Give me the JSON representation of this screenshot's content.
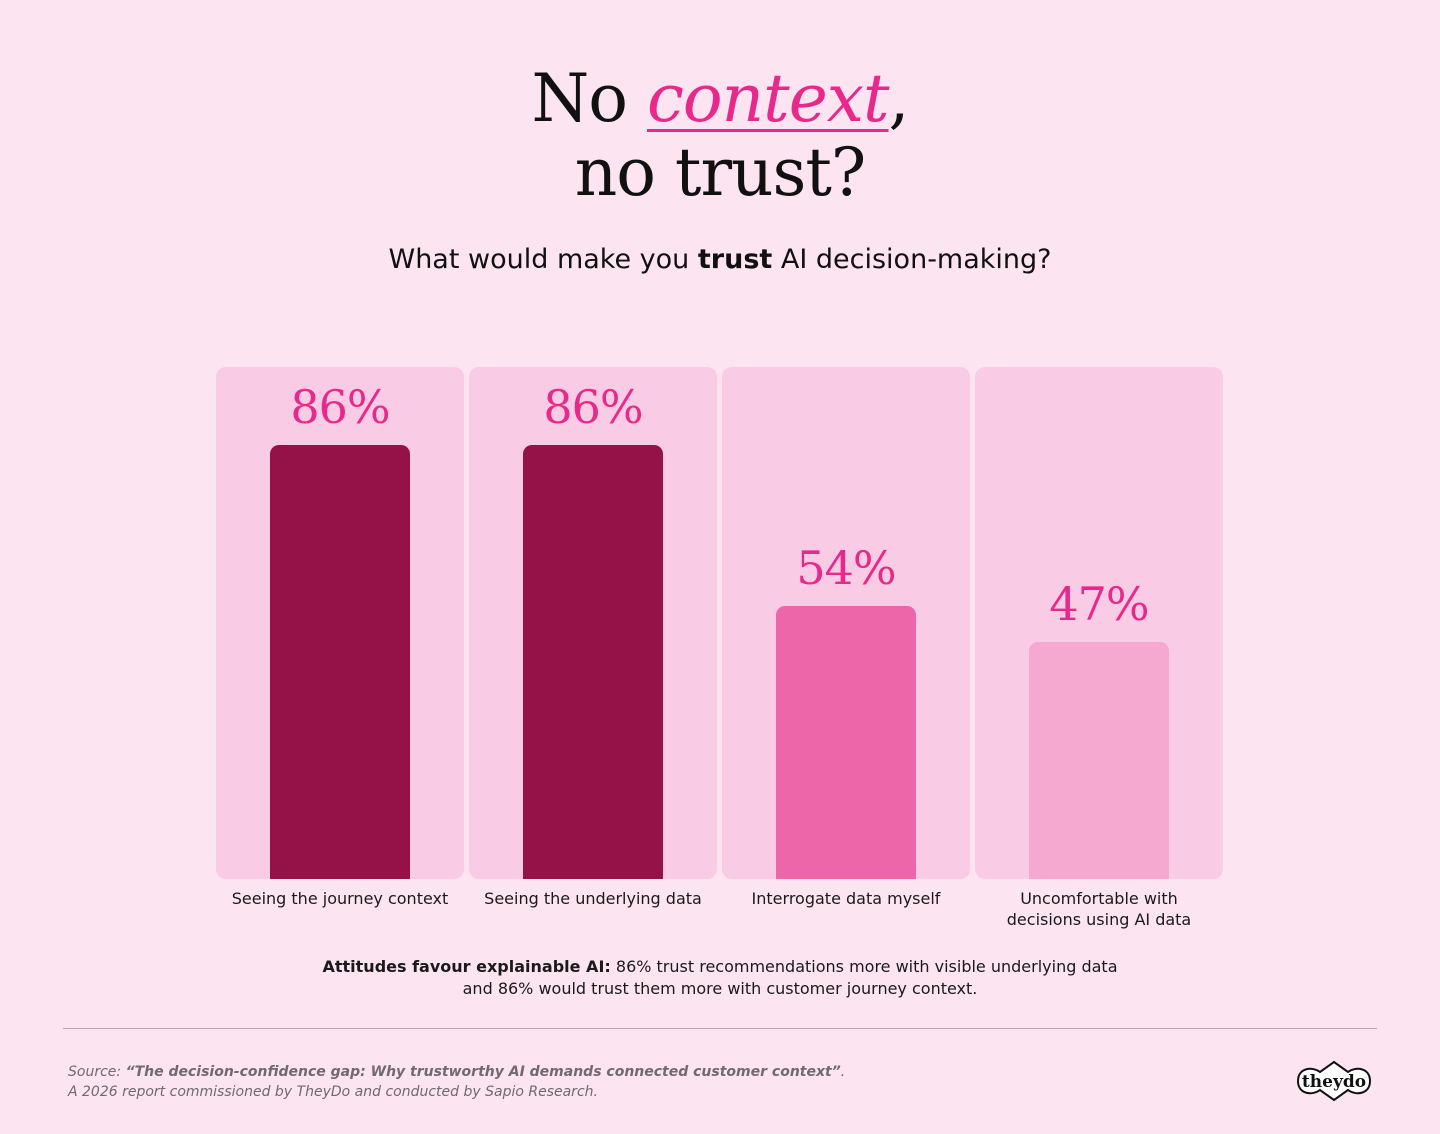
{
  "header": {
    "title_prefix": "No ",
    "title_accent": "context",
    "title_comma": ",",
    "title_line2": "no trust?",
    "question_prefix": "What would make you ",
    "question_bold": "trust",
    "question_suffix": " AI decision-making?"
  },
  "colors": {
    "background": "#fce4f0",
    "panel": "#f9cbe4",
    "accent": "#e8288a"
  },
  "chart_data": {
    "type": "bar",
    "title": "",
    "xlabel": "",
    "ylabel": "",
    "ylim": [
      0,
      100
    ],
    "grid": false,
    "categories": [
      "Seeing the journey context",
      "Seeing the underlying data",
      "Interrogate data myself",
      "Uncomfortable with decisions using AI data"
    ],
    "values": [
      86,
      86,
      54,
      47
    ],
    "value_labels": [
      "86%",
      "86%",
      "54%",
      "47%"
    ],
    "category_lines": [
      [
        "Seeing the journey context"
      ],
      [
        "Seeing the underlying data"
      ],
      [
        "Interrogate data myself"
      ],
      [
        "Uncomfortable with",
        "decisions using AI data"
      ]
    ],
    "bar_colors": [
      "#941245",
      "#941245",
      "#ee66aa",
      "#f5a9d1"
    ]
  },
  "note": {
    "bold": "Attitudes favour explainable AI:",
    "text": " 86% trust recommendations more with visible underlying data and 86% would trust them more with customer journey context."
  },
  "footer": {
    "source_prefix": "Source: ",
    "source_title": "“The decision-confidence gap: Why trustworthy AI demands connected customer context”",
    "source_suffix": ".",
    "source_line2": "A 2026 report commissioned by TheyDo and conducted by Sapio Research.",
    "logo_text": "theydo"
  }
}
